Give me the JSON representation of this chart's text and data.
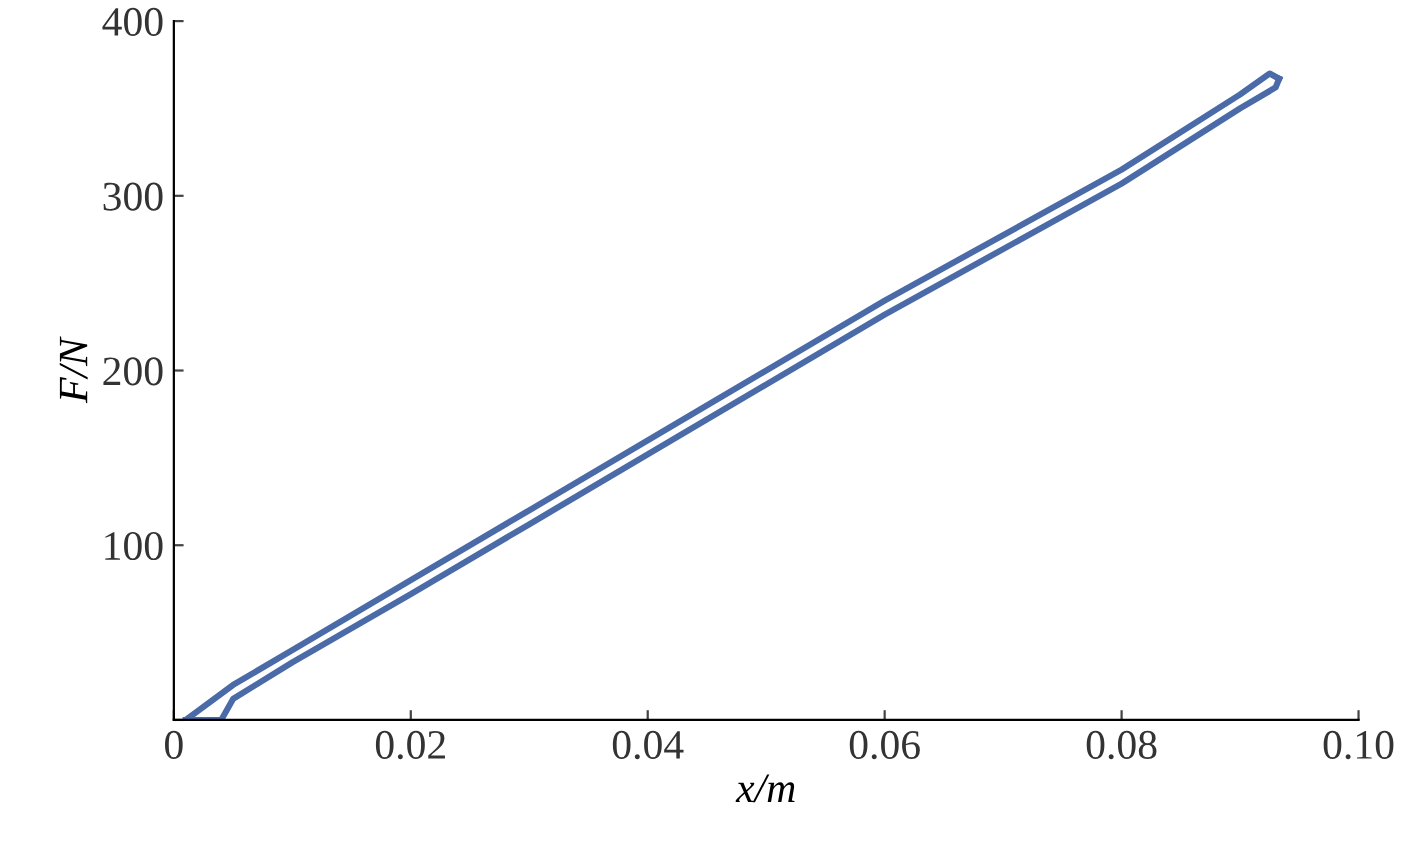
{
  "chart_data": {
    "type": "line",
    "xlabel": "x/m",
    "ylabel": "F/N",
    "xlim": [
      0,
      0.1
    ],
    "ylim": [
      0,
      400
    ],
    "xticks": [
      0,
      {
        "value": 0.02,
        "label": "0.02"
      },
      {
        "value": 0.04,
        "label": "0.04"
      },
      {
        "value": 0.06,
        "label": "0.06"
      },
      {
        "value": 0.08,
        "label": "0.08"
      },
      {
        "value": 0.1,
        "label": "0.10"
      }
    ],
    "yticks": [
      {
        "value": 0,
        "label": null
      },
      100,
      200,
      300,
      400
    ],
    "grid": false,
    "legend": false,
    "marker": "none",
    "line_style": "solid",
    "series": [
      {
        "color": "#4a6aa8",
        "x": [
          0.001,
          0.005,
          0.01,
          0.02,
          0.03,
          0.045,
          0.06,
          0.08,
          0.09,
          0.0925,
          0.0933
        ],
        "values": [
          0,
          20,
          40,
          80,
          120,
          180,
          240,
          315,
          358,
          370,
          367
        ]
      },
      {
        "color": "#4a6aa8",
        "x": [
          0.001,
          0.004,
          0.005,
          0.01,
          0.02,
          0.03,
          0.045,
          0.06,
          0.08,
          0.09,
          0.093,
          0.0933
        ],
        "values": [
          0,
          0,
          12,
          33,
          72,
          112,
          172,
          232,
          307,
          350,
          362,
          367
        ]
      }
    ]
  }
}
